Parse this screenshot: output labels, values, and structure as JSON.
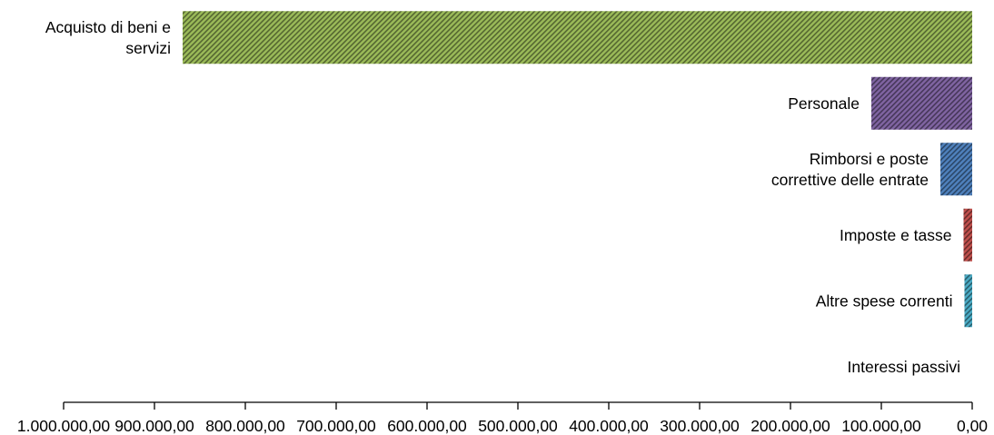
{
  "chart_data": {
    "type": "bar",
    "orientation": "horizontal",
    "categories": [
      "Acquisto di beni e servizi",
      "Personale",
      "Rimborsi e poste correttive delle entrate",
      "Imposte e tasse",
      "Altre spese correnti",
      "Interessi passivi"
    ],
    "label_lines": [
      [
        "Acquisto di beni e",
        "servizi"
      ],
      [
        "Personale"
      ],
      [
        "Rimborsi e poste",
        "correttive delle entrate"
      ],
      [
        "Imposte e tasse"
      ],
      [
        "Altre spese correnti"
      ],
      [
        "Interessi passivi"
      ]
    ],
    "values": [
      869000,
      111000,
      35000,
      9500,
      8500,
      0
    ],
    "colors": [
      "#9bbb59",
      "#8064a2",
      "#4f81bd",
      "#c0504d",
      "#4bacc6",
      "#f79646"
    ],
    "xlim": [
      0,
      1000000
    ],
    "x_reversed": true,
    "x_ticks": [
      1000000,
      900000,
      800000,
      700000,
      600000,
      500000,
      400000,
      300000,
      200000,
      100000,
      0
    ],
    "x_tick_labels": [
      "1.000.000,00",
      "900.000,00",
      "800.000,00",
      "700.000,00",
      "600.000,00",
      "500.000,00",
      "400.000,00",
      "300.000,00",
      "200.000,00",
      "100.000,00",
      "0,00"
    ],
    "bar_fill": "diagonal-hatch",
    "grid": false,
    "legend": "none"
  }
}
